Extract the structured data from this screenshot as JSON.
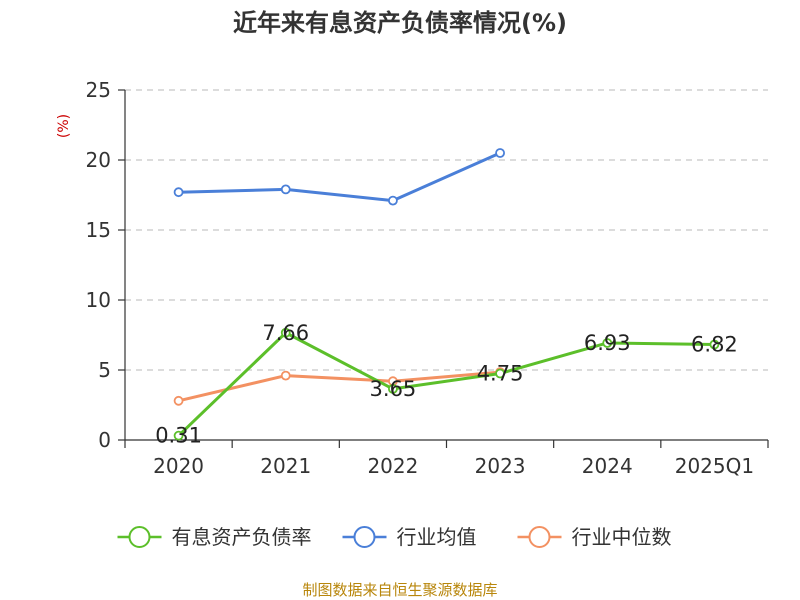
{
  "chart_data": {
    "type": "line",
    "title": "近年来有息资产负债率情况(%)",
    "ylabel": "(%)",
    "categories": [
      "2020",
      "2021",
      "2022",
      "2023",
      "2024",
      "2025Q1"
    ],
    "ylim": [
      0,
      25
    ],
    "yticks": [
      0,
      5,
      10,
      15,
      20,
      25
    ],
    "grid": true,
    "legend_position": "bottom",
    "series": [
      {
        "name": "有息资产负债率",
        "color": "#5cbf2a",
        "values": [
          0.31,
          7.66,
          3.65,
          4.75,
          6.93,
          6.82
        ],
        "labels": [
          "0.31",
          "7.66",
          "3.65",
          "4.75",
          "6.93",
          "6.82"
        ]
      },
      {
        "name": "行业均值",
        "color": "#4a7fd8",
        "values": [
          17.7,
          17.9,
          17.1,
          20.5,
          null,
          null
        ]
      },
      {
        "name": "行业中位数",
        "color": "#f39162",
        "values": [
          2.8,
          4.6,
          4.2,
          4.85,
          null,
          null
        ]
      }
    ]
  },
  "footer": {
    "source": "制图数据来自恒生聚源数据库"
  }
}
